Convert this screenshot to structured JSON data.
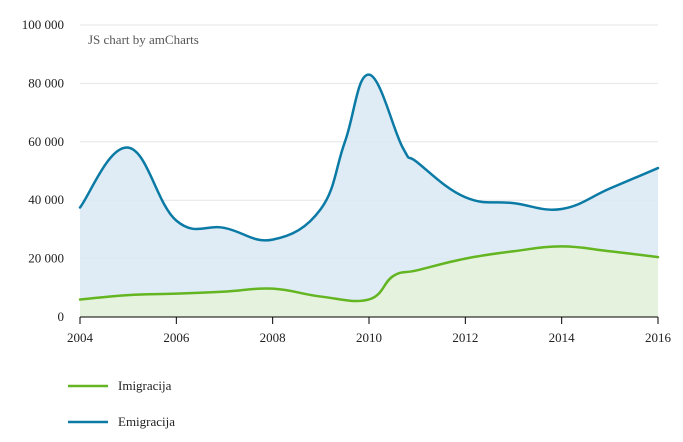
{
  "chart_data": {
    "type": "area",
    "credit": "JS chart by amCharts",
    "x": [
      2004,
      2005,
      2006,
      2007,
      2008,
      2009,
      2010,
      2011,
      2012,
      2013,
      2014,
      2015,
      2016
    ],
    "x_ticks": [
      "2004",
      "2006",
      "2008",
      "2010",
      "2012",
      "2014",
      "2016"
    ],
    "y_ticks": [
      "0",
      "20 000",
      "40 000",
      "60 000",
      "80 000",
      "100 000"
    ],
    "xlim": [
      2004,
      2016
    ],
    "ylim": [
      0,
      100000
    ],
    "grid": true,
    "legend_position": "bottom-left",
    "series": [
      {
        "name": "Imigracija",
        "color": "#63b521",
        "fill": "#e6f4d9",
        "x": [
          2004,
          2005,
          2006,
          2007,
          2008,
          2009,
          2010,
          2010.5,
          2011,
          2012,
          2013,
          2014,
          2015,
          2016
        ],
        "values": [
          6000,
          7500,
          8000,
          8700,
          9700,
          7000,
          6000,
          14000,
          16000,
          20000,
          22500,
          24200,
          22500,
          20500
        ]
      },
      {
        "name": "Emigracija",
        "color": "#0b7ba6",
        "fill": "#d9e9f3",
        "x": [
          2004,
          2005,
          2006,
          2007,
          2008,
          2009,
          2009.5,
          2010,
          2010.7,
          2011,
          2012,
          2013,
          2014,
          2015,
          2016
        ],
        "values": [
          37500,
          58000,
          33000,
          30500,
          26500,
          37000,
          60000,
          83000,
          58000,
          53000,
          41000,
          39000,
          37000,
          44000,
          51000
        ]
      }
    ]
  }
}
